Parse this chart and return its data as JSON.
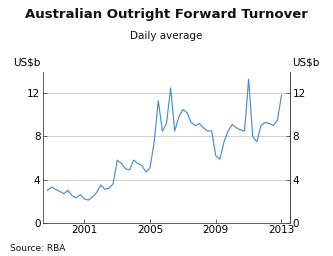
{
  "title": "Australian Outright Forward Turnover",
  "subtitle": "Daily average",
  "ylabel_left": "US$b",
  "ylabel_right": "US$b",
  "source": "Source: RBA",
  "line_color": "#4a90c4",
  "background_color": "#ffffff",
  "ylim": [
    0,
    14
  ],
  "yticks": [
    0,
    4,
    8,
    12
  ],
  "xlim_start": 1998.5,
  "xlim_end": 2013.5,
  "xticks": [
    2001,
    2005,
    2009,
    2013
  ],
  "series": {
    "years": [
      1998.75,
      1999.0,
      1999.25,
      1999.5,
      1999.75,
      2000.0,
      2000.25,
      2000.5,
      2000.75,
      2001.0,
      2001.25,
      2001.5,
      2001.75,
      2002.0,
      2002.25,
      2002.5,
      2002.75,
      2003.0,
      2003.25,
      2003.5,
      2003.75,
      2004.0,
      2004.25,
      2004.5,
      2004.75,
      2005.0,
      2005.25,
      2005.5,
      2005.75,
      2006.0,
      2006.25,
      2006.5,
      2006.75,
      2007.0,
      2007.25,
      2007.5,
      2007.75,
      2008.0,
      2008.25,
      2008.5,
      2008.75,
      2009.0,
      2009.25,
      2009.5,
      2009.75,
      2010.0,
      2010.25,
      2010.5,
      2010.75,
      2011.0,
      2011.25,
      2011.5,
      2011.75,
      2012.0,
      2012.25,
      2012.5,
      2012.75,
      2013.0
    ],
    "values": [
      3.0,
      3.3,
      3.1,
      2.9,
      2.7,
      3.0,
      2.5,
      2.3,
      2.6,
      2.2,
      2.1,
      2.4,
      2.8,
      3.5,
      3.1,
      3.2,
      3.6,
      5.8,
      5.5,
      5.0,
      4.9,
      5.8,
      5.5,
      5.3,
      4.7,
      5.1,
      7.5,
      11.3,
      8.5,
      9.2,
      12.5,
      8.5,
      9.8,
      10.5,
      10.2,
      9.3,
      9.0,
      9.2,
      8.8,
      8.5,
      8.5,
      6.2,
      5.9,
      7.5,
      8.5,
      9.1,
      8.8,
      8.6,
      8.5,
      13.3,
      8.0,
      7.5,
      9.0,
      9.3,
      9.2,
      9.0,
      9.5,
      11.8
    ]
  }
}
